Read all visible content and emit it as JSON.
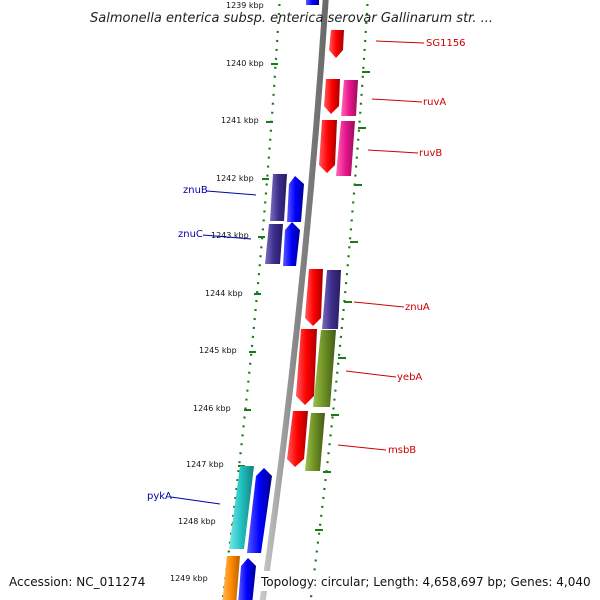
{
  "title": "Salmonella enterica subsp. enterica serovar Gallinarum str. ...",
  "footer": {
    "accession": "Accession: NC_011274",
    "info": "Topology: circular; Length: 4,658,697 bp; Genes: 4,040"
  },
  "colors": {
    "background": "#ffffff",
    "backbone": "#9a9a9a",
    "tick_dotted": "#1a7a1a",
    "forward_label": "#cc0000",
    "reverse_label": "#0000aa"
  },
  "ticks": [
    "1239 kbp",
    "1240 kbp",
    "1241 kbp",
    "1242 kbp",
    "1243 kbp",
    "1244 kbp",
    "1245 kbp",
    "1246 kbp",
    "1247 kbp",
    "1248 kbp",
    "1249 kbp"
  ],
  "gene_labels": {
    "forward": [
      "SG1156",
      "ruvA",
      "ruvB",
      "znuA",
      "yebA",
      "msbB"
    ],
    "reverse": [
      "znuB",
      "znuC",
      "pykA"
    ]
  },
  "legend_colors": {
    "forward_cds": "#ff0000",
    "forward_inner_ruv": "#e8158c",
    "forward_inner_znuA": "#3c2e8c",
    "forward_inner_yebA": "#6b8e23",
    "reverse_cds": "#0000ff",
    "reverse_inner_znu": "#4b3a8a",
    "reverse_inner_pykA": "#20c0c0",
    "reverse_inner_orange": "#ff8c00"
  }
}
